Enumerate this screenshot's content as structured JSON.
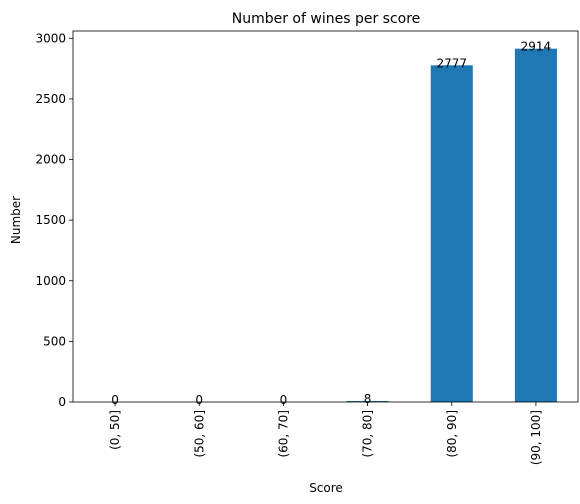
{
  "chart_data": {
    "type": "bar",
    "title": "Number of wines per score",
    "xlabel": "Score",
    "ylabel": "Number",
    "categories": [
      "(0, 50]",
      "(50, 60]",
      "(60, 70]",
      "(70, 80]",
      "(80, 90]",
      "(90, 100]"
    ],
    "values": [
      0,
      0,
      0,
      8,
      2777,
      2914
    ],
    "data_labels": [
      "0",
      "0",
      "0",
      "8",
      "2777",
      "2914"
    ],
    "yticks": [
      0,
      500,
      1000,
      1500,
      2000,
      2500,
      3000
    ],
    "ylim": [
      0,
      3060
    ],
    "grid": false,
    "legend": "none",
    "bar_color": "#1f77b4"
  }
}
